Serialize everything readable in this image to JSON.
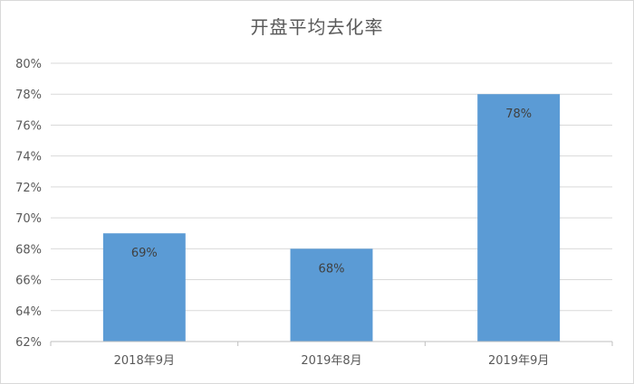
{
  "chart_data": {
    "type": "bar",
    "title": "开盘平均去化率",
    "categories": [
      "2018年9月",
      "2019年8月",
      "2019年9月"
    ],
    "values": [
      69,
      68,
      78
    ],
    "data_labels": [
      "69%",
      "68%",
      "78%"
    ],
    "ylim": [
      62,
      80
    ],
    "yticks": [
      62,
      64,
      66,
      68,
      70,
      72,
      74,
      76,
      78,
      80
    ],
    "ytick_labels": [
      "62%",
      "64%",
      "66%",
      "68%",
      "70%",
      "72%",
      "74%",
      "76%",
      "78%",
      "80%"
    ],
    "xlabel": "",
    "ylabel": "",
    "grid": true,
    "legend": "none",
    "colors": {
      "bar": "#5b9bd5",
      "grid": "#d9d9d9",
      "axis": "#bfbfbf",
      "text": "#595959"
    }
  }
}
